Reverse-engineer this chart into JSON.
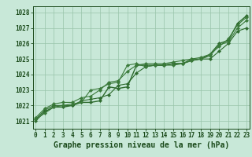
{
  "x": [
    0,
    1,
    2,
    3,
    4,
    5,
    6,
    7,
    8,
    9,
    10,
    11,
    12,
    13,
    14,
    15,
    16,
    17,
    18,
    19,
    20,
    21,
    22,
    23
  ],
  "lines": [
    {
      "y": [
        1021.0,
        1021.6,
        1021.9,
        1021.9,
        1022.0,
        1022.2,
        1022.2,
        1022.3,
        1023.2,
        1023.1,
        1023.2,
        1024.6,
        1024.6,
        1024.6,
        1024.6,
        1024.7,
        1024.7,
        1024.9,
        1025.0,
        1025.3,
        1026.0,
        1026.2,
        1027.3,
        1027.8
      ],
      "color": "#2d6a2d",
      "marker": "D",
      "markersize": 2.2,
      "linewidth": 1.0
    },
    {
      "y": [
        1021.1,
        1021.7,
        1022.0,
        1022.0,
        1022.0,
        1022.3,
        1022.4,
        1022.5,
        1022.7,
        1023.3,
        1023.4,
        1024.1,
        1024.5,
        1024.6,
        1024.6,
        1024.7,
        1024.7,
        1025.0,
        1025.0,
        1025.0,
        1025.5,
        1026.0,
        1026.8,
        1027.0
      ],
      "color": "#2d6a2d",
      "marker": "D",
      "markersize": 2.2,
      "linewidth": 0.8
    },
    {
      "y": [
        1021.2,
        1021.8,
        1022.1,
        1022.2,
        1022.2,
        1022.5,
        1022.6,
        1023.0,
        1023.5,
        1023.6,
        1024.2,
        1024.6,
        1024.7,
        1024.7,
        1024.7,
        1024.8,
        1024.9,
        1025.0,
        1025.1,
        1025.3,
        1025.8,
        1026.3,
        1027.2,
        1027.7
      ],
      "color": "#3a7a3a",
      "marker": "D",
      "markersize": 2.2,
      "linewidth": 0.8
    },
    {
      "y": [
        1021.1,
        1021.5,
        1021.9,
        1022.0,
        1022.1,
        1022.2,
        1023.0,
        1023.1,
        1023.4,
        1023.5,
        1024.6,
        1024.7,
        1024.5,
        1024.6,
        1024.6,
        1024.6,
        1024.7,
        1024.9,
        1025.0,
        1025.2,
        1025.9,
        1026.1,
        1027.0,
        1027.5
      ],
      "color": "#3a7a3a",
      "marker": "D",
      "markersize": 2.2,
      "linewidth": 0.8
    }
  ],
  "xlim": [
    -0.3,
    23.3
  ],
  "ylim": [
    1020.5,
    1028.4
  ],
  "yticks": [
    1021,
    1022,
    1023,
    1024,
    1025,
    1026,
    1027,
    1028
  ],
  "xticks": [
    0,
    1,
    2,
    3,
    4,
    5,
    6,
    7,
    8,
    9,
    10,
    11,
    12,
    13,
    14,
    15,
    16,
    17,
    18,
    19,
    20,
    21,
    22,
    23
  ],
  "xlabel": "Graphe pression niveau de la mer (hPa)",
  "bg_color": "#c8e8d8",
  "grid_color": "#98c4aa",
  "text_color": "#1a4a1a",
  "tick_color": "#1a4a1a",
  "tick_fontsize": 5.5,
  "xlabel_fontsize": 7.0
}
